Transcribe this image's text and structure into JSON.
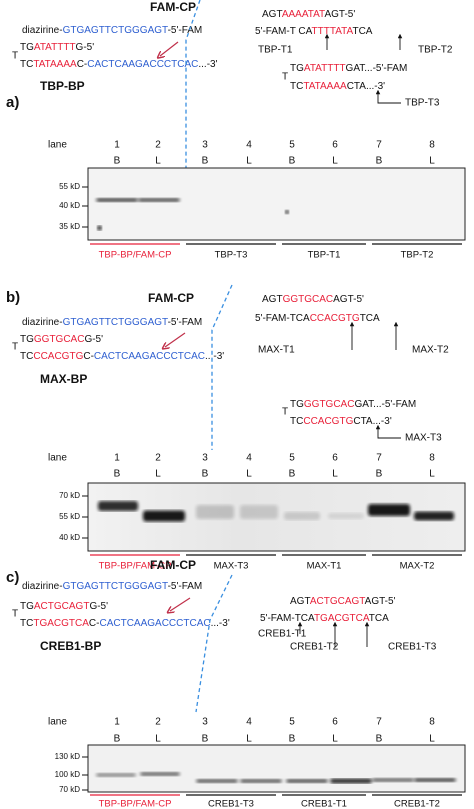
{
  "panels": [
    {
      "label": "a)",
      "probe": {
        "name": "FAM-CP",
        "prefix": "diazirine-",
        "seq": "GTGAGTTCTGGGAGT",
        "suffix": "-5'-FAM"
      },
      "bp_hairpin": {
        "loop": "T",
        "top": [
          "TG",
          "ATATTTT",
          "G-5'"
        ],
        "bottom": [
          "TC",
          "TATAAAA",
          "C-",
          "CACTCAAGACCCTCAC",
          "...-3'"
        ]
      },
      "bp_name": "TBP-BP",
      "target_top": [
        "AGT",
        "AAAATAT",
        "AGT-5'"
      ],
      "target_bottom": [
        "5'-FAM-T CA",
        "TTTTATA",
        "TCA"
      ],
      "target_labels": [
        "TBP-T1",
        "TBP-T2"
      ],
      "t3_hairpin": {
        "loop": "T",
        "top": [
          "TG",
          "ATATTTT",
          "GAT...-5'-FAM"
        ],
        "bottom": [
          "TC",
          "TATAAAA",
          "CTA...-3'"
        ]
      },
      "t3_label": "TBP-T3",
      "gel": {
        "lane_title": "lane",
        "lanes": [
          "1",
          "2",
          "3",
          "4",
          "5",
          "6",
          "7",
          "8"
        ],
        "conditions": [
          "B",
          "L",
          "B",
          "L",
          "B",
          "L",
          "B",
          "L"
        ],
        "markers": [
          "55 kD",
          "40 kD",
          "35 kD"
        ],
        "groups": [
          "TBP-BP/FAM-CP",
          "TBP-T3",
          "TBP-T1",
          "TBP-T2"
        ]
      }
    },
    {
      "label": "b)",
      "probe": {
        "name": "FAM-CP",
        "prefix": "diazirine-",
        "seq": "GTGAGTTCTGGGAGT",
        "suffix": "-5'-FAM"
      },
      "bp_hairpin": {
        "loop": "T",
        "top": [
          "TG",
          "GGTGCAC",
          "G-5'"
        ],
        "bottom": [
          "TC",
          "CCACGTG",
          "C-",
          "CACTCAAGACCCTCAC",
          "...-3'"
        ]
      },
      "bp_name": "MAX-BP",
      "target_top": [
        "AGT",
        "GGTGCAC",
        "AGT-5'"
      ],
      "target_bottom": [
        "5'-FAM-TCA",
        "CCACGTG",
        "TCA"
      ],
      "target_labels": [
        "MAX-T1",
        "MAX-T2"
      ],
      "t3_hairpin": {
        "loop": "T",
        "top": [
          "TG",
          "GGTGCAC",
          "GAT...-5'-FAM"
        ],
        "bottom": [
          "TC",
          "CCACGTG",
          "CTA...-3'"
        ]
      },
      "t3_label": "MAX-T3",
      "gel": {
        "lane_title": "lane",
        "lanes": [
          "1",
          "2",
          "3",
          "4",
          "5",
          "6",
          "7",
          "8"
        ],
        "conditions": [
          "B",
          "L",
          "B",
          "L",
          "B",
          "L",
          "B",
          "L"
        ],
        "markers": [
          "70 kD",
          "55 kD",
          "40 kD"
        ],
        "groups": [
          "TBP-BP/FAM-CP",
          "MAX-T3",
          "MAX-T1",
          "MAX-T2"
        ]
      }
    },
    {
      "label": "c)",
      "probe": {
        "name": "FAM-CP",
        "prefix": "diazirine-",
        "seq": "GTGAGTTCTGGGAGT",
        "suffix": "-5'-FAM"
      },
      "bp_hairpin": {
        "loop": "T",
        "top": [
          "TG",
          "ACTGCAGT",
          "G-5'"
        ],
        "bottom": [
          "TC",
          "TGACGTCA",
          "C-",
          "CACTCAAGACCCTCAC",
          "...-3'"
        ]
      },
      "bp_name": "CREB1-BP",
      "target_top": [
        "AGT",
        "ACTGCAGT",
        "AGT-5'"
      ],
      "target_bottom": [
        "5'-FAM-TCA",
        "TGACGTCA",
        "TCA"
      ],
      "target_labels": [
        "CREB1-T1",
        "CREB1-T2",
        "CREB1-T3"
      ],
      "gel": {
        "lane_title": "lane",
        "lanes": [
          "1",
          "2",
          "3",
          "4",
          "5",
          "6",
          "7",
          "8"
        ],
        "conditions": [
          "B",
          "L",
          "B",
          "L",
          "B",
          "L",
          "B",
          "L"
        ],
        "markers": [
          "130 kD",
          "100 kD",
          "70 kD"
        ],
        "groups": [
          "TBP-BP/FAM-CP",
          "CREB1-T3",
          "CREB1-T1",
          "CREB1-T2"
        ]
      }
    }
  ]
}
